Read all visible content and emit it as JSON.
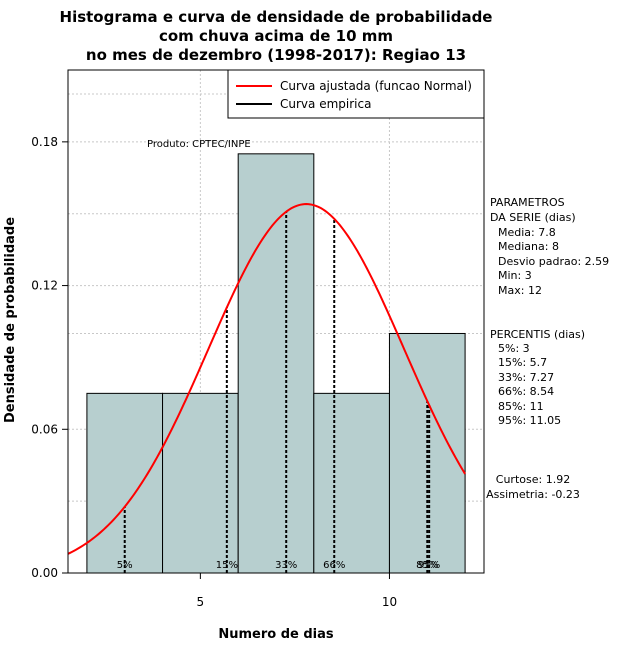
{
  "chart_data": {
    "type": "bar",
    "title_lines": [
      "Histograma e curva de densidade de probabilidade",
      "com chuva acima de 10 mm",
      "no mes de dezembro (1998-2017): Regiao 13"
    ],
    "xlabel": "Numero de dias",
    "ylabel": "Densidade de probabilidade",
    "xlim": [
      1.5,
      12.5
    ],
    "ylim": [
      0,
      0.21
    ],
    "xticks": [
      5,
      10
    ],
    "yticks": [
      0.0,
      0.06,
      0.12,
      0.18
    ],
    "ytick_labels": [
      "0.00",
      "0.06",
      "0.12",
      "0.18"
    ],
    "bins": [
      {
        "start": 2,
        "end": 4,
        "density": 0.075
      },
      {
        "start": 4,
        "end": 6,
        "density": 0.075
      },
      {
        "start": 6,
        "end": 8,
        "density": 0.175
      },
      {
        "start": 8,
        "end": 10,
        "density": 0.075
      },
      {
        "start": 10,
        "end": 12,
        "density": 0.1
      }
    ],
    "bar_color": "#b7cfcf",
    "curve_color": "#ff0000",
    "normal_fit": {
      "mean": 7.8,
      "sd": 2.59
    },
    "legend": [
      {
        "label": "Curva ajustada (funcao Normal)",
        "color": "#ff0000"
      },
      {
        "label": "Curva empirica",
        "color": "#000000"
      }
    ],
    "legend_position": "top-right",
    "source_label": "Produto: CPTEC/INPE",
    "percentiles": [
      {
        "label": "5%",
        "x": 3
      },
      {
        "label": "15%",
        "x": 5.7
      },
      {
        "label": "33%",
        "x": 7.27
      },
      {
        "label": "66%",
        "x": 8.54
      },
      {
        "label": "85%",
        "x": 11
      },
      {
        "label": "95%",
        "x": 11.05
      }
    ],
    "stats": {
      "parametros_lines": [
        "PARAMETROS",
        "DA SERIE (dias)",
        "Media: 7.8",
        "Mediana: 8",
        "Desvio padrao: 2.59",
        "Min: 3",
        "Max: 12"
      ],
      "percentis_lines": [
        "PERCENTIS (dias)",
        "5%: 3",
        "15%: 5.7",
        "33%: 7.27",
        "66%: 8.54",
        "85%: 11",
        "95%: 11.05"
      ],
      "curtose": "Curtose: 1.92",
      "assimetria": "Assimetria: -0.23"
    }
  }
}
